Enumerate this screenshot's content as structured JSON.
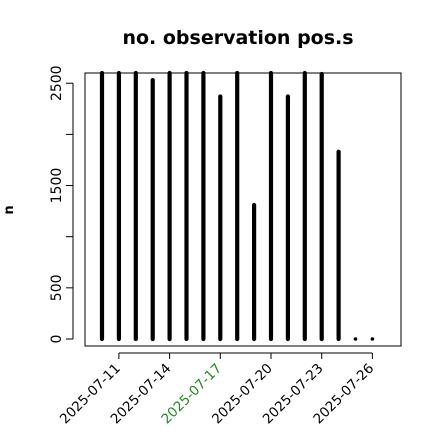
{
  "chart_data": {
    "type": "bar",
    "title": "no. observation pos.s",
    "xlabel": "",
    "ylabel": "n",
    "ylim": [
      0,
      2600
    ],
    "yticks": [
      0,
      500,
      1500,
      2500
    ],
    "x": [
      "2025-07-10",
      "2025-07-11",
      "2025-07-12",
      "2025-07-13",
      "2025-07-14",
      "2025-07-15",
      "2025-07-16",
      "2025-07-17",
      "2025-07-18",
      "2025-07-19",
      "2025-07-20",
      "2025-07-21",
      "2025-07-22",
      "2025-07-23",
      "2025-07-24",
      "2025-07-25",
      "2025-07-26"
    ],
    "values": [
      2600,
      2600,
      2600,
      2530,
      2600,
      2600,
      2600,
      2370,
      2600,
      1310,
      2600,
      2370,
      2600,
      2590,
      1830,
      0,
      0
    ],
    "xtick_labels": [
      "2025-07-11",
      "2025-07-14",
      "2025-07-17",
      "2025-07-20",
      "2025-07-23",
      "2025-07-26"
    ],
    "xtick_label_colors": [
      "#000000",
      "#000000",
      "#228b22",
      "#000000",
      "#000000",
      "#000000"
    ],
    "bar_color": "#000000",
    "grid": false,
    "legend": "none"
  }
}
